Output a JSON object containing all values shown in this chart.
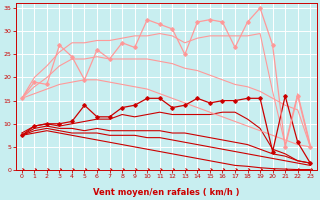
{
  "background_color": "#c8eef0",
  "grid_color": "#ffffff",
  "xlabel": "Vent moyen/en rafales ( km/h )",
  "xlabel_color": "#cc0000",
  "tick_color": "#cc0000",
  "xlim": [
    -0.5,
    23.5
  ],
  "ylim": [
    0,
    36
  ],
  "yticks": [
    0,
    5,
    10,
    15,
    20,
    25,
    30,
    35
  ],
  "xticks": [
    0,
    1,
    2,
    3,
    4,
    5,
    6,
    7,
    8,
    9,
    10,
    11,
    12,
    13,
    14,
    15,
    16,
    17,
    18,
    19,
    20,
    21,
    22,
    23
  ],
  "lines": [
    {
      "x": [
        0,
        1,
        2,
        3,
        4,
        5,
        6,
        7,
        8,
        9,
        10,
        11,
        12,
        13,
        14,
        15,
        16,
        17,
        18,
        19,
        20,
        21,
        22,
        23
      ],
      "y": [
        7.5,
        9.5,
        10,
        10,
        10.5,
        14,
        11.5,
        11.5,
        13.5,
        14,
        15.5,
        15.5,
        13.5,
        14,
        15.5,
        14.5,
        15,
        15,
        15.5,
        15.5,
        4,
        16,
        6,
        1.5
      ],
      "color": "#cc0000",
      "lw": 0.9,
      "marker": "D",
      "ms": 1.8
    },
    {
      "x": [
        0,
        1,
        2,
        3,
        4,
        5,
        6,
        7,
        8,
        9,
        10,
        11,
        12,
        13,
        14,
        15,
        16,
        17,
        18,
        19,
        20,
        21,
        22,
        23
      ],
      "y": [
        8,
        9.5,
        10,
        9.5,
        10,
        10.5,
        11,
        11,
        12,
        11.5,
        12,
        12.5,
        12,
        12,
        12,
        12,
        12.5,
        12.5,
        11,
        9,
        4.5,
        3.5,
        2.0,
        1.5
      ],
      "color": "#cc0000",
      "lw": 0.8,
      "marker": null,
      "ms": 0
    },
    {
      "x": [
        0,
        1,
        2,
        3,
        4,
        5,
        6,
        7,
        8,
        9,
        10,
        11,
        12,
        13,
        14,
        15,
        16,
        17,
        18,
        19,
        20,
        21,
        22,
        23
      ],
      "y": [
        7.5,
        9.0,
        9.5,
        9.0,
        9.0,
        8.5,
        9.0,
        8.5,
        8.5,
        8.5,
        8.5,
        8.5,
        8.0,
        8.0,
        7.5,
        7.0,
        6.5,
        6.0,
        5.5,
        4.5,
        3.5,
        3.0,
        2.0,
        1.5
      ],
      "color": "#cc0000",
      "lw": 0.8,
      "marker": null,
      "ms": 0
    },
    {
      "x": [
        0,
        1,
        2,
        3,
        4,
        5,
        6,
        7,
        8,
        9,
        10,
        11,
        12,
        13,
        14,
        15,
        16,
        17,
        18,
        19,
        20,
        21,
        22,
        23
      ],
      "y": [
        7.5,
        8.5,
        9.0,
        8.5,
        8.0,
        8.0,
        8.0,
        7.5,
        7.5,
        7.5,
        7.0,
        7.0,
        6.5,
        6.0,
        5.5,
        5.0,
        4.5,
        4.0,
        3.5,
        3.0,
        2.5,
        2.0,
        1.5,
        1.0
      ],
      "color": "#cc0000",
      "lw": 0.8,
      "marker": null,
      "ms": 0
    },
    {
      "x": [
        0,
        1,
        2,
        3,
        4,
        5,
        6,
        7,
        8,
        9,
        10,
        11,
        12,
        13,
        14,
        15,
        16,
        17,
        18,
        19,
        20,
        21,
        22,
        23
      ],
      "y": [
        7.5,
        8.0,
        8.5,
        8.0,
        7.5,
        7.0,
        6.5,
        6.0,
        5.5,
        5.0,
        4.5,
        4.0,
        3.5,
        3.0,
        2.5,
        2.0,
        1.5,
        1.0,
        0.8,
        0.5,
        0.3,
        0.2,
        0.1,
        0.1
      ],
      "color": "#cc0000",
      "lw": 0.8,
      "marker": null,
      "ms": 0
    },
    {
      "x": [
        0,
        1,
        2,
        3,
        4,
        5,
        6,
        7,
        8,
        9,
        10,
        11,
        12,
        13,
        14,
        15,
        16,
        17,
        18,
        19,
        20,
        21,
        22,
        23
      ],
      "y": [
        15.5,
        19.0,
        18.5,
        27.0,
        24.5,
        19.5,
        26.0,
        24.0,
        27.5,
        26.5,
        32.5,
        31.5,
        30.5,
        25.0,
        32.0,
        32.5,
        32.0,
        26.5,
        32.0,
        35.0,
        27.0,
        5.0,
        16.0,
        5.0
      ],
      "color": "#ff9999",
      "lw": 0.9,
      "marker": "D",
      "ms": 1.8
    },
    {
      "x": [
        0,
        1,
        2,
        3,
        4,
        5,
        6,
        7,
        8,
        9,
        10,
        11,
        12,
        13,
        14,
        15,
        16,
        17,
        18,
        19,
        20,
        21,
        22,
        23
      ],
      "y": [
        15.5,
        20.0,
        22.5,
        25.5,
        27.5,
        27.5,
        28.0,
        28.0,
        28.5,
        29.0,
        29.0,
        29.5,
        29.0,
        27.5,
        28.5,
        29.0,
        29.0,
        29.0,
        29.0,
        29.5,
        17.0,
        5.5,
        16.5,
        5.5
      ],
      "color": "#ff9999",
      "lw": 0.8,
      "marker": null,
      "ms": 0
    },
    {
      "x": [
        0,
        1,
        2,
        3,
        4,
        5,
        6,
        7,
        8,
        9,
        10,
        11,
        12,
        13,
        14,
        15,
        16,
        17,
        18,
        19,
        20,
        21,
        22,
        23
      ],
      "y": [
        15.5,
        18.0,
        20.0,
        22.5,
        24.0,
        24.0,
        24.5,
        24.0,
        24.0,
        24.0,
        24.0,
        23.5,
        23.0,
        22.0,
        21.5,
        20.5,
        19.5,
        18.5,
        18.0,
        17.0,
        15.5,
        14.0,
        13.0,
        5.0
      ],
      "color": "#ff9999",
      "lw": 0.8,
      "marker": null,
      "ms": 0
    },
    {
      "x": [
        0,
        1,
        2,
        3,
        4,
        5,
        6,
        7,
        8,
        9,
        10,
        11,
        12,
        13,
        14,
        15,
        16,
        17,
        18,
        19,
        20,
        21,
        22,
        23
      ],
      "y": [
        15.5,
        16.5,
        17.5,
        18.5,
        19.0,
        19.5,
        19.5,
        19.0,
        18.5,
        18.0,
        17.5,
        16.5,
        15.5,
        14.5,
        13.5,
        12.5,
        11.5,
        10.5,
        9.5,
        8.5,
        7.5,
        6.5,
        5.5,
        5.0
      ],
      "color": "#ff9999",
      "lw": 0.8,
      "marker": null,
      "ms": 0
    }
  ],
  "arrow_color": "#cc0000"
}
